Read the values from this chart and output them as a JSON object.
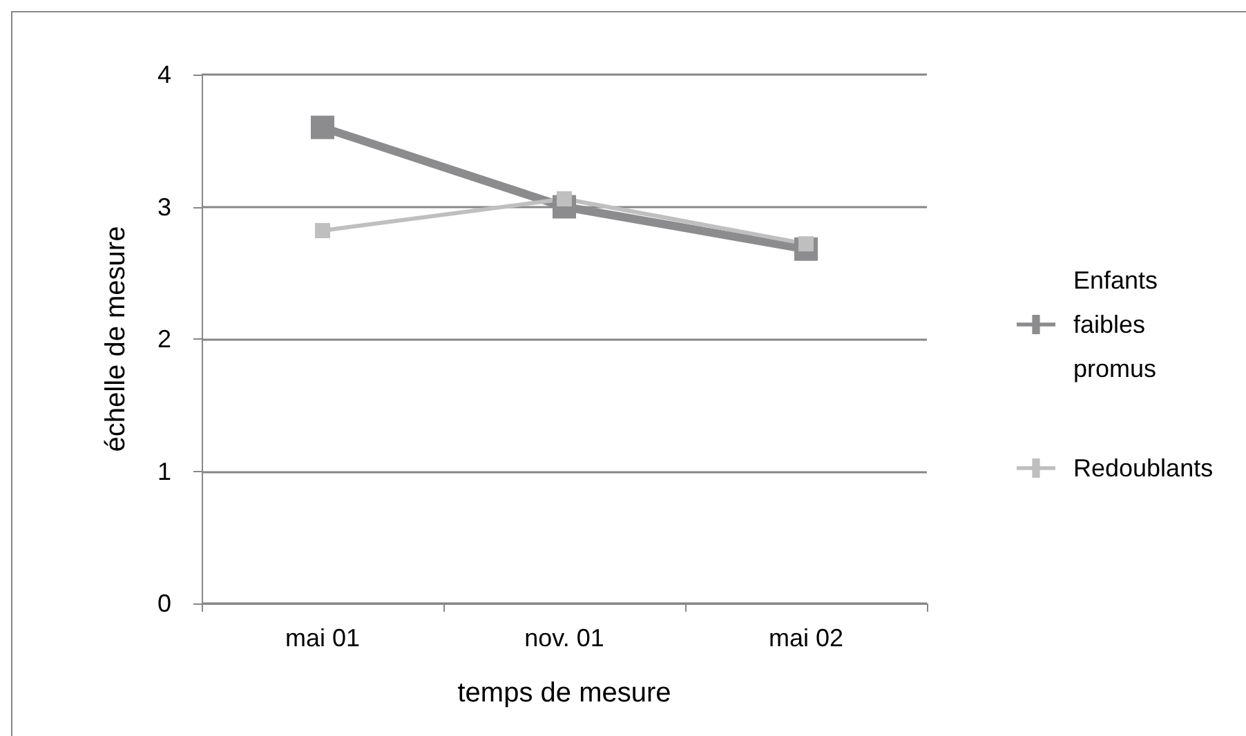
{
  "chart_data": {
    "type": "line",
    "xlabel": "temps de mesure",
    "ylabel": "échelle de mesure",
    "categories": [
      "mai 01",
      "nov. 01",
      "mai 02"
    ],
    "series": [
      {
        "name": "Enfants faibles promus",
        "color": "#8c8c8e",
        "values": [
          3.6,
          3.0,
          2.68
        ]
      },
      {
        "name": "Redoublants",
        "color": "#bfbfbf",
        "values": [
          2.82,
          3.06,
          2.72
        ]
      }
    ],
    "ylim": [
      0,
      4
    ],
    "yticks": [
      0,
      1,
      2,
      3,
      4
    ],
    "grid": "y",
    "legend": "right",
    "marker": "square",
    "line_style": "solid"
  }
}
